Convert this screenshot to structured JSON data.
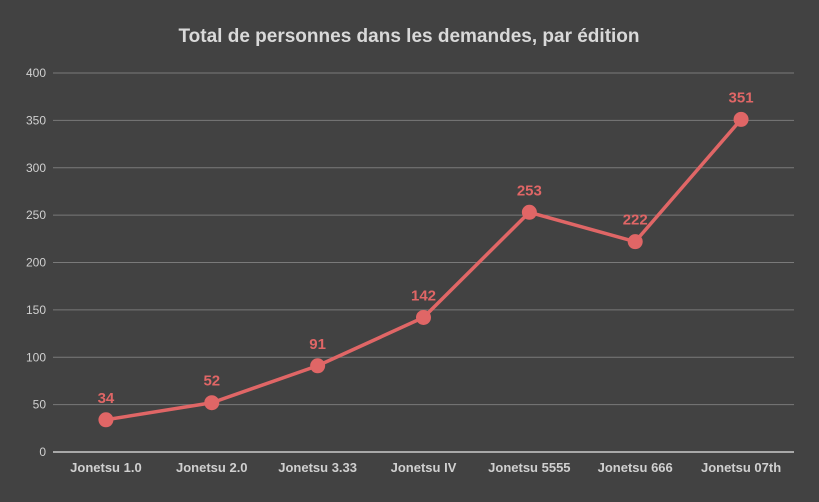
{
  "chart_data": {
    "type": "line",
    "title": "Total de personnes dans les demandes, par édition",
    "xlabel": "",
    "ylabel": "",
    "categories": [
      "Jonetsu 1.0",
      "Jonetsu 2.0",
      "Jonetsu 3.33",
      "Jonetsu IV",
      "Jonetsu 5555",
      "Jonetsu 666",
      "Jonetsu 07th"
    ],
    "series": [
      {
        "values": [
          34,
          52,
          91,
          142,
          253,
          222,
          351
        ]
      }
    ],
    "ylim": [
      0,
      400
    ],
    "yticks": [
      0,
      50,
      100,
      150,
      200,
      250,
      300,
      350,
      400
    ],
    "grid": true,
    "legend": "none",
    "data_labels": true,
    "colors": {
      "background": "#424242",
      "line": "#e06666",
      "text": "#d9d9d9"
    }
  }
}
